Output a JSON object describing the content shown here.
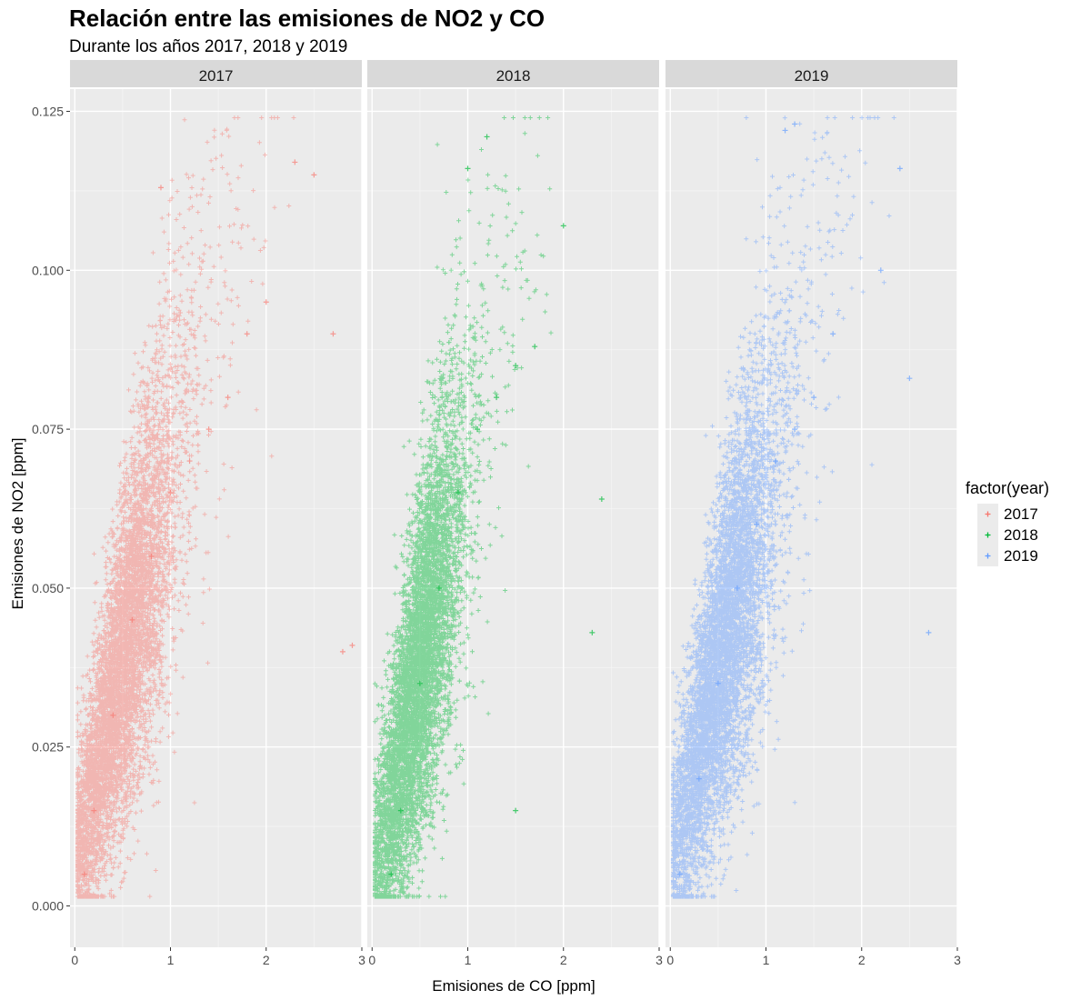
{
  "chart_data": {
    "type": "scatter",
    "title": "Relación entre las emisiones de NO2 y CO",
    "subtitle": "Durante los años 2017, 2018 y 2019",
    "xlabel": "Emisiones de CO [ppm]",
    "ylabel": "Emisiones de NO2 [ppm]",
    "xlim": [
      -0.05,
      3.0
    ],
    "ylim": [
      -0.0065,
      0.1285
    ],
    "x_ticks": [
      0,
      1,
      2,
      3
    ],
    "x_tick_labels": [
      "0",
      "1",
      "2",
      "3"
    ],
    "y_ticks": [
      0.0,
      0.025,
      0.05,
      0.075,
      0.1,
      0.125
    ],
    "y_tick_labels": [
      "0.000",
      "0.025",
      "0.050",
      "0.075",
      "0.100",
      "0.125"
    ],
    "grid": true,
    "facets": [
      "2017",
      "2018",
      "2019"
    ],
    "legend": {
      "title": "factor(year)",
      "position": "right",
      "entries": [
        "2017",
        "2018",
        "2019"
      ]
    },
    "colors": {
      "2017": "#F8766D",
      "2018": "#00BA38",
      "2019": "#619CFF"
    },
    "series": [
      {
        "name": "2017",
        "description_points": [
          [
            0.1,
            0.005
          ],
          [
            0.2,
            0.015
          ],
          [
            0.4,
            0.03
          ],
          [
            0.6,
            0.045
          ],
          [
            0.8,
            0.055
          ],
          [
            1.0,
            0.065
          ],
          [
            1.2,
            0.07
          ],
          [
            1.4,
            0.075
          ],
          [
            1.6,
            0.08
          ],
          [
            1.8,
            0.09
          ],
          [
            2.0,
            0.095
          ],
          [
            2.3,
            0.117
          ],
          [
            2.5,
            0.115
          ],
          [
            2.8,
            0.04
          ],
          [
            2.9,
            0.041
          ],
          [
            0.9,
            0.113
          ],
          [
            2.7,
            0.09
          ]
        ]
      },
      {
        "name": "2018",
        "description_points": [
          [
            0.2,
            0.005
          ],
          [
            0.3,
            0.015
          ],
          [
            0.5,
            0.035
          ],
          [
            0.7,
            0.05
          ],
          [
            0.9,
            0.065
          ],
          [
            1.1,
            0.075
          ],
          [
            1.3,
            0.08
          ],
          [
            1.5,
            0.085
          ],
          [
            1.7,
            0.088
          ],
          [
            1.2,
            0.121
          ],
          [
            1.0,
            0.116
          ],
          [
            2.4,
            0.064
          ],
          [
            2.3,
            0.043
          ],
          [
            2.0,
            0.107
          ],
          [
            1.5,
            0.015
          ]
        ]
      },
      {
        "name": "2019",
        "description_points": [
          [
            0.1,
            0.005
          ],
          [
            0.3,
            0.02
          ],
          [
            0.5,
            0.035
          ],
          [
            0.7,
            0.05
          ],
          [
            0.9,
            0.06
          ],
          [
            1.1,
            0.07
          ],
          [
            1.3,
            0.075
          ],
          [
            1.5,
            0.08
          ],
          [
            1.7,
            0.09
          ],
          [
            1.2,
            0.122
          ],
          [
            1.3,
            0.123
          ],
          [
            2.4,
            0.116
          ],
          [
            2.7,
            0.043
          ],
          [
            2.5,
            0.083
          ],
          [
            2.2,
            0.1
          ]
        ]
      }
    ]
  }
}
